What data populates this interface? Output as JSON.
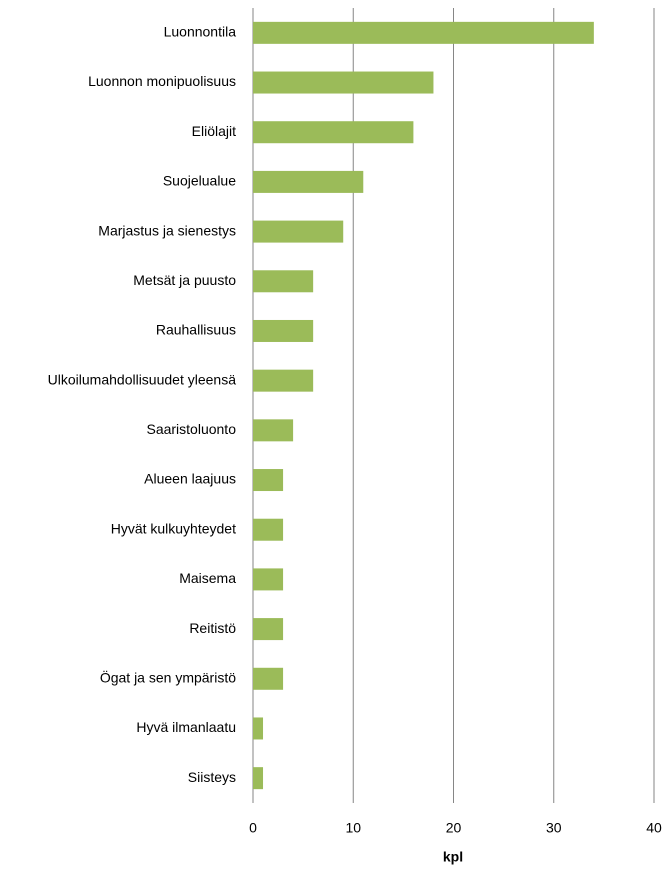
{
  "chart_data": {
    "type": "bar",
    "orientation": "horizontal",
    "categories": [
      "Luonnontila",
      "Luonnon monipuolisuus",
      "Eliölajit",
      "Suojelualue",
      "Marjastus ja sienestys",
      "Metsät ja puusto",
      "Rauhallisuus",
      "Ulkoilumahdollisuudet yleensä",
      "Saaristoluonto",
      "Alueen laajuus",
      "Hyvät kulkuyhteydet",
      "Maisema",
      "Reitistö",
      "Ögat ja sen ympäristö",
      "Hyvä ilmanlaatu",
      "Siisteys"
    ],
    "values": [
      34,
      18,
      16,
      11,
      9,
      6,
      6,
      6,
      4,
      3,
      3,
      3,
      3,
      3,
      1,
      1
    ],
    "color": "#9bbb59",
    "xlabel": "kpl",
    "xlim": [
      0,
      40
    ],
    "xticks": [
      0,
      10,
      20,
      30,
      40
    ],
    "grid": true
  }
}
